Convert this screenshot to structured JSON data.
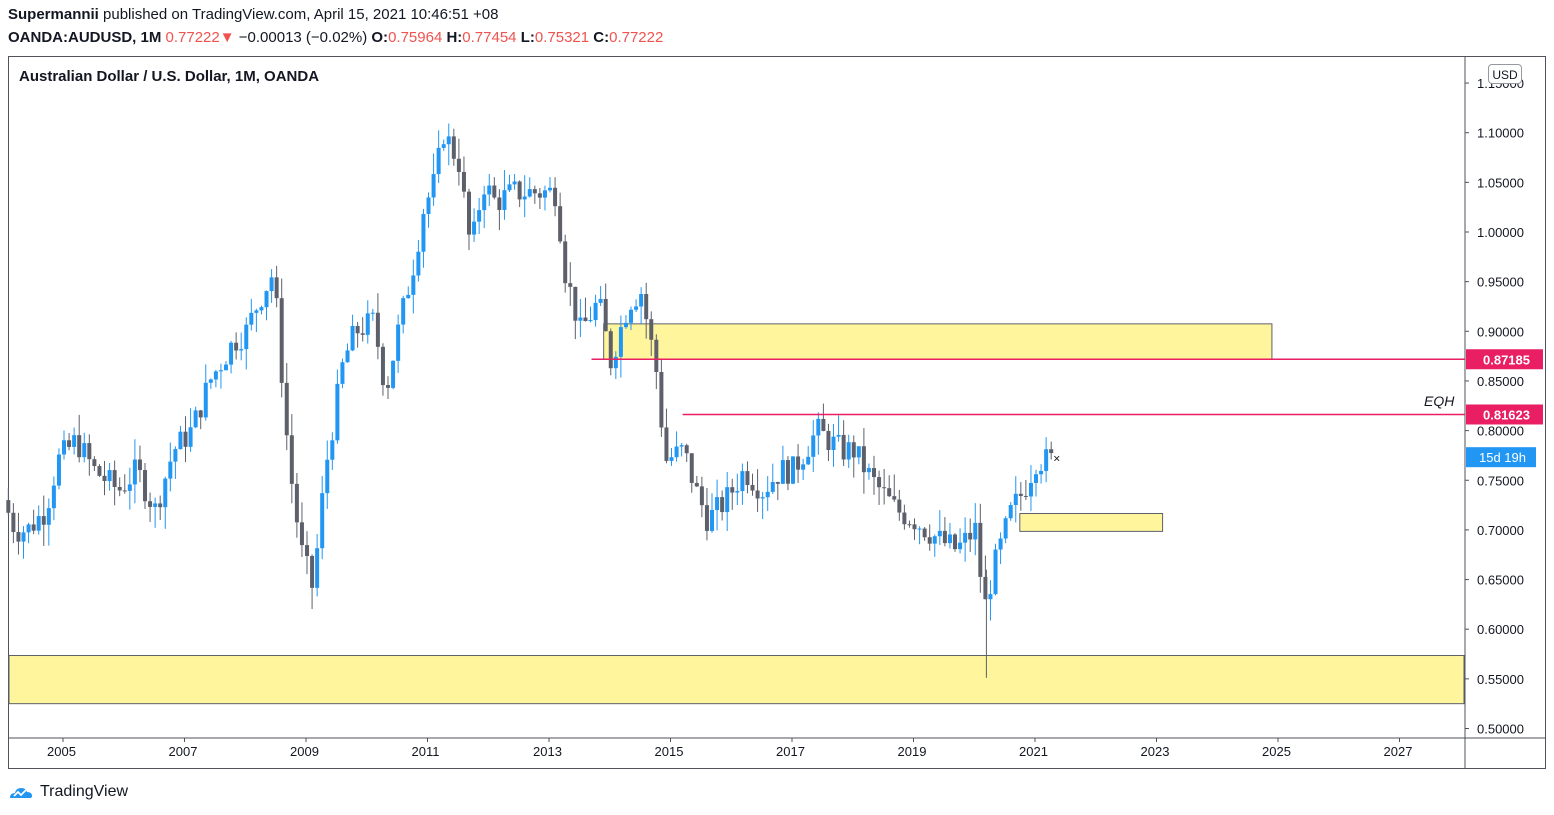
{
  "header": {
    "author": "Supermannii",
    "published_text": " published on TradingView.com, April 15, 2021 10:46:51 +08",
    "symbol": "OANDA:AUDUSD, 1M",
    "last": "0.77222",
    "change": "−0.00013 (−0.02%)",
    "o_label": "O:",
    "o_value": "0.75964",
    "h_label": "H:",
    "h_value": "0.77454",
    "l_label": "L:",
    "l_value": "0.75321",
    "c_label": "C:",
    "c_value": "0.77222",
    "down_arrow": "▼"
  },
  "chart": {
    "title": "Australian Dollar / U.S. Dollar, 1M, OANDA",
    "currency": "USD",
    "eqh_label": "EQH",
    "countdown": "15d 19h"
  },
  "footer": {
    "brand": "TradingView"
  },
  "colors": {
    "up": "#2196f3",
    "down": "#5d606b",
    "zone": "#fff59d",
    "level": "#e91e63",
    "countdown_bg": "#2196f3"
  },
  "chart_data": {
    "type": "candlestick",
    "title": "Australian Dollar / U.S. Dollar, 1M, OANDA",
    "y_axis": {
      "min": 0.5,
      "max": 1.15,
      "ticks": [
        "0.50000",
        "0.55000",
        "0.60000",
        "0.65000",
        "0.70000",
        "0.75000",
        "0.80000",
        "0.85000",
        "0.90000",
        "0.95000",
        "1.00000",
        "1.05000",
        "1.10000",
        "1.15000"
      ]
    },
    "x_axis": {
      "min": 2004.1,
      "max": 2028.3,
      "ticks": [
        "2005",
        "2007",
        "2009",
        "2011",
        "2013",
        "2015",
        "2017",
        "2019",
        "2021",
        "2023",
        "2025",
        "2027"
      ]
    },
    "anchors": [
      [
        2004.1,
        0.73
      ],
      [
        2004.3,
        0.7
      ],
      [
        2004.5,
        0.7
      ],
      [
        2004.8,
        0.72
      ],
      [
        2005.0,
        0.77
      ],
      [
        2005.3,
        0.79
      ],
      [
        2005.6,
        0.76
      ],
      [
        2006.0,
        0.74
      ],
      [
        2006.3,
        0.76
      ],
      [
        2006.6,
        0.72
      ],
      [
        2006.9,
        0.78
      ],
      [
        2007.2,
        0.8
      ],
      [
        2007.5,
        0.85
      ],
      [
        2007.9,
        0.89
      ],
      [
        2008.1,
        0.9
      ],
      [
        2008.3,
        0.93
      ],
      [
        2008.55,
        0.96
      ],
      [
        2008.8,
        0.77
      ],
      [
        2009.0,
        0.68
      ],
      [
        2009.2,
        0.64
      ],
      [
        2009.4,
        0.76
      ],
      [
        2009.7,
        0.87
      ],
      [
        2009.9,
        0.9
      ],
      [
        2010.2,
        0.91
      ],
      [
        2010.4,
        0.84
      ],
      [
        2010.6,
        0.9
      ],
      [
        2010.9,
        0.98
      ],
      [
        2011.0,
        1.02
      ],
      [
        2011.2,
        1.05
      ],
      [
        2011.35,
        1.1
      ],
      [
        2011.6,
        1.07
      ],
      [
        2011.8,
        0.98
      ],
      [
        2012.0,
        1.05
      ],
      [
        2012.2,
        1.03
      ],
      [
        2012.5,
        1.04
      ],
      [
        2012.8,
        1.04
      ],
      [
        2013.0,
        1.04
      ],
      [
        2013.2,
        1.04
      ],
      [
        2013.35,
        0.96
      ],
      [
        2013.6,
        0.9
      ],
      [
        2013.9,
        0.93
      ],
      [
        2014.1,
        0.87
      ],
      [
        2014.4,
        0.93
      ],
      [
        2014.6,
        0.94
      ],
      [
        2014.85,
        0.86
      ],
      [
        2015.0,
        0.77
      ],
      [
        2015.3,
        0.78
      ],
      [
        2015.5,
        0.74
      ],
      [
        2015.7,
        0.71
      ],
      [
        2016.0,
        0.73
      ],
      [
        2016.3,
        0.76
      ],
      [
        2016.6,
        0.74
      ],
      [
        2016.9,
        0.76
      ],
      [
        2017.1,
        0.76
      ],
      [
        2017.5,
        0.8
      ],
      [
        2017.7,
        0.79
      ],
      [
        2017.9,
        0.78
      ],
      [
        2018.1,
        0.78
      ],
      [
        2018.4,
        0.75
      ],
      [
        2018.8,
        0.72
      ],
      [
        2019.1,
        0.71
      ],
      [
        2019.5,
        0.69
      ],
      [
        2019.8,
        0.68
      ],
      [
        2020.1,
        0.7
      ],
      [
        2020.25,
        0.62
      ],
      [
        2020.4,
        0.66
      ],
      [
        2020.7,
        0.72
      ],
      [
        2020.9,
        0.74
      ],
      [
        2021.1,
        0.77
      ],
      [
        2021.3,
        0.77
      ]
    ],
    "zones": [
      {
        "name": "supply-zone-upper",
        "x0": 2013.9,
        "x1": 2024.9,
        "y0": 0.8718,
        "y1": 0.9075
      },
      {
        "name": "demand-zone-mid",
        "x0": 2020.75,
        "x1": 2023.1,
        "y0": 0.6985,
        "y1": 0.7165
      },
      {
        "name": "demand-zone-lower",
        "x0": 2004.1,
        "x1": 2028.3,
        "y0": 0.525,
        "y1": 0.5735
      }
    ],
    "levels": [
      {
        "value": 0.87185,
        "label": "0.87185",
        "x0": 2013.7
      },
      {
        "value": 0.81623,
        "label": "0.81623",
        "x0": 2015.2
      }
    ],
    "last_price": 0.77222
  }
}
